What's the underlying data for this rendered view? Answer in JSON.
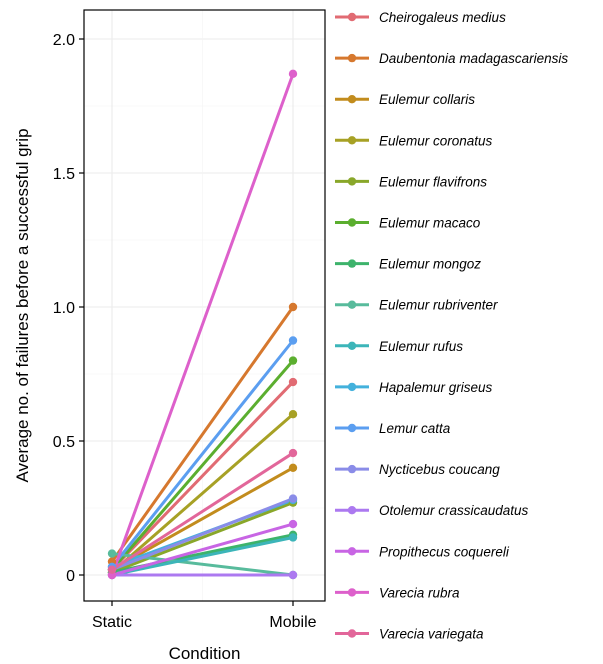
{
  "chart_data": {
    "type": "line",
    "title": "",
    "xlabel": "Condition",
    "ylabel": "Average no. of failures before a successful grip",
    "categories": [
      "Static",
      "Mobile"
    ],
    "ylim": [
      -0.1,
      2.1
    ],
    "yticks": [
      0,
      0.5,
      1.0,
      1.5,
      2.0
    ],
    "ytick_labels": [
      "0",
      "0.5",
      "1.0",
      "1.5",
      "2.0"
    ],
    "grid": true,
    "legend_position": "right",
    "series": [
      {
        "name": "Cheirogaleus medius",
        "color": "#E16B73",
        "values": [
          0.02,
          0.72
        ]
      },
      {
        "name": "Daubentonia madagascariensis",
        "color": "#D6782E",
        "values": [
          0.05,
          1.0
        ]
      },
      {
        "name": "Eulemur collaris",
        "color": "#C28C1D",
        "values": [
          0.02,
          0.4
        ]
      },
      {
        "name": "Eulemur coronatus",
        "color": "#A7A125",
        "values": [
          0.01,
          0.6
        ]
      },
      {
        "name": "Eulemur flavifrons",
        "color": "#89A72A",
        "values": [
          0.01,
          0.27
        ]
      },
      {
        "name": "Eulemur macaco",
        "color": "#5BAE2F",
        "values": [
          0.02,
          0.8
        ]
      },
      {
        "name": "Eulemur mongoz",
        "color": "#3DB36B",
        "values": [
          0.01,
          0.15
        ]
      },
      {
        "name": "Eulemur rubriventer",
        "color": "#58BB9C",
        "values": [
          0.08,
          0.0
        ]
      },
      {
        "name": "Eulemur rufus",
        "color": "#3CB5B9",
        "values": [
          0.0,
          0.14
        ]
      },
      {
        "name": "Hapalemur griseus",
        "color": "#43B1DC",
        "values": [
          0.03,
          0.28
        ]
      },
      {
        "name": "Lemur catta",
        "color": "#5B9EF0",
        "values": [
          0.03,
          0.875
        ]
      },
      {
        "name": "Nycticebus coucang",
        "color": "#8A8CE8",
        "values": [
          0.02,
          0.285
        ]
      },
      {
        "name": "Otolemur crassicaudatus",
        "color": "#AC79F0",
        "values": [
          0.0,
          0.0
        ]
      },
      {
        "name": "Propithecus coquereli",
        "color": "#C865E4",
        "values": [
          0.0,
          0.19
        ]
      },
      {
        "name": "Varecia rubra",
        "color": "#DD60CB",
        "values": [
          0.0,
          1.87
        ]
      },
      {
        "name": "Varecia variegata",
        "color": "#E2669A",
        "values": [
          0.02,
          0.455
        ]
      }
    ]
  }
}
